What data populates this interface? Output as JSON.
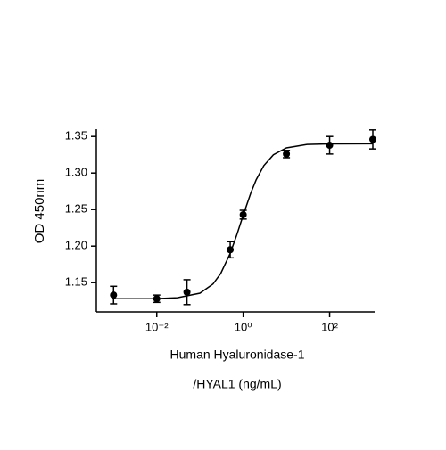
{
  "chart_data": {
    "type": "scatter",
    "ylabel": "OD 450nm",
    "xlabel": [
      "Human Hyaluronidase-1",
      "/HYAL1 (ng/mL)"
    ],
    "xscale": "log",
    "x": [
      0.001,
      0.01,
      0.05,
      0.5,
      1,
      10,
      100,
      1000
    ],
    "series": [
      {
        "color": "#000000",
        "values": [
          1.133,
          1.128,
          1.137,
          1.195,
          1.243,
          1.326,
          1.338,
          1.346
        ],
        "errors": [
          0.012,
          0.005,
          0.017,
          0.011,
          0.006,
          0.005,
          0.012,
          0.013
        ]
      }
    ],
    "curve": {
      "color": "#000000",
      "x": [
        0.001,
        0.003,
        0.01,
        0.03,
        0.1,
        0.2,
        0.3,
        0.5,
        0.7,
        1,
        1.5,
        2,
        3,
        5,
        10,
        30,
        100,
        1000
      ],
      "values": [
        1.128,
        1.128,
        1.1282,
        1.1293,
        1.1356,
        1.1481,
        1.1622,
        1.19,
        1.2142,
        1.2423,
        1.2727,
        1.2908,
        1.3101,
        1.325,
        1.3344,
        1.3391,
        1.3398,
        1.34
      ]
    },
    "xlim": [
      0.0004,
      1100
    ],
    "ylim": [
      1.11,
      1.36
    ],
    "xticks": [
      {
        "value": 0.01,
        "label": "10⁻²"
      },
      {
        "value": 1,
        "label": "10⁰"
      },
      {
        "value": 100,
        "label": "10²"
      }
    ],
    "yticks": [
      1.15,
      {
        "value": 1.2,
        "label": "1.20"
      },
      1.25,
      {
        "value": 1.3,
        "label": "1.30"
      },
      1.35
    ],
    "grid": false
  }
}
